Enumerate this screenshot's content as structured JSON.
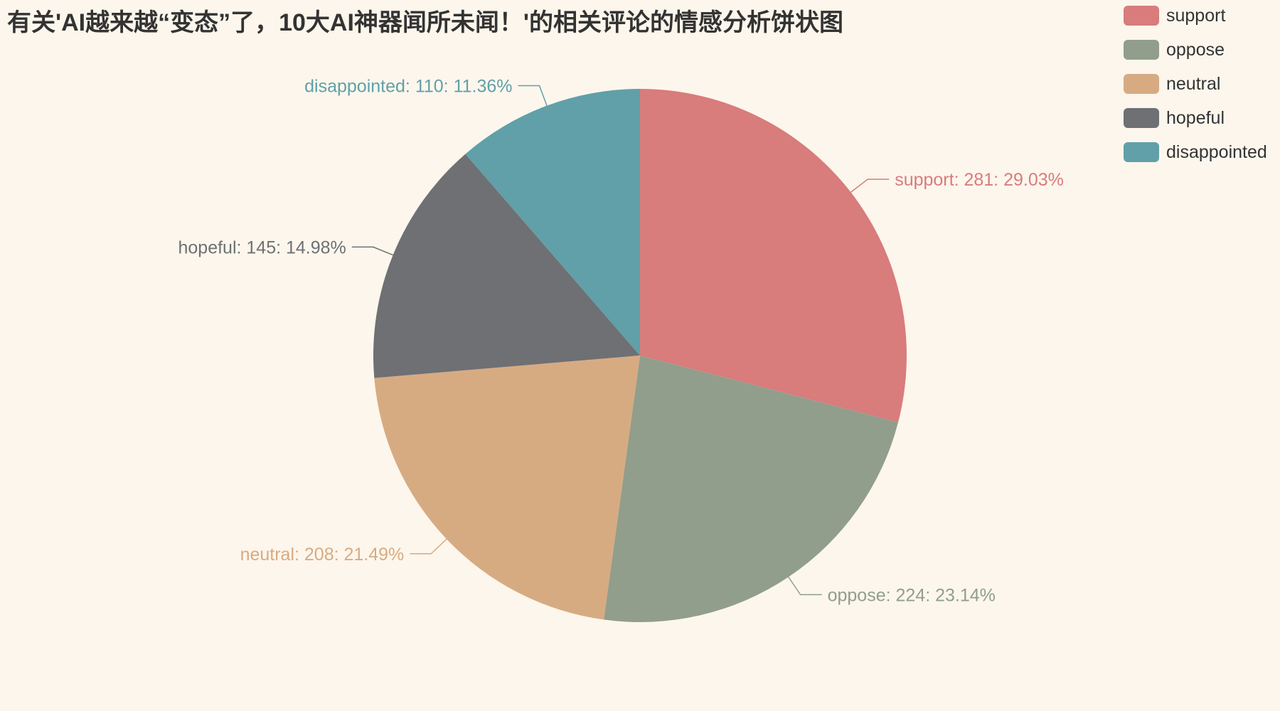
{
  "title": "有关'AI越来越“变态”了，10大AI神器闻所未闻！'的相关评论的情感分析饼状图",
  "chart_data": {
    "type": "pie",
    "title": "有关'AI越来越“变态”了，10大AI神器闻所未闻！'的相关评论的情感分析饼状图",
    "legend_position": "top-right",
    "label_format": "{name}: {value}: {percent}",
    "slices": [
      {
        "name": "support",
        "value": 281,
        "percent": "29.03%",
        "color": "#d87c7c"
      },
      {
        "name": "oppose",
        "value": 224,
        "percent": "23.14%",
        "color": "#919e8b"
      },
      {
        "name": "neutral",
        "value": 208,
        "percent": "21.49%",
        "color": "#d7ab82"
      },
      {
        "name": "hopeful",
        "value": 145,
        "percent": "14.98%",
        "color": "#6e7074"
      },
      {
        "name": "disappointed",
        "value": 110,
        "percent": "11.36%",
        "color": "#61a0a8"
      }
    ]
  },
  "colors": {
    "background": "#fdf6ec",
    "title_text": "#333333",
    "legend_text": "#333333"
  }
}
